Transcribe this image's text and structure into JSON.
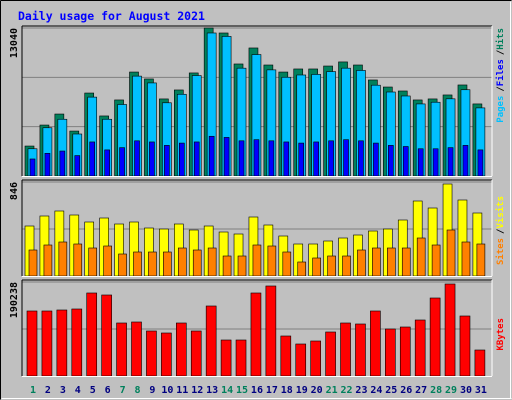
{
  "chart_data": [
    {
      "type": "bar",
      "title": "Daily usage for August 2021",
      "separator": "/",
      "ylim": [
        0,
        13040
      ],
      "yticks": [
        13040
      ],
      "series": [
        {
          "name": "Hits",
          "color": "#00805c",
          "values": [
            2640,
            4490,
            5460,
            3960,
            7310,
            5290,
            6700,
            9160,
            8550,
            6790,
            7580,
            9080,
            13040,
            12600,
            9870,
            11280,
            9780,
            9160,
            9430,
            9430,
            9690,
            10050,
            9780,
            8460,
            7840,
            7490,
            6700,
            6790,
            7140,
            8020,
            6350
          ]
        },
        {
          "name": "Files",
          "color": "#0000ff",
          "values": [
            1500,
            2000,
            2200,
            1800,
            3000,
            2300,
            2500,
            3100,
            3000,
            2700,
            2900,
            3000,
            3500,
            3400,
            3100,
            3200,
            3100,
            3000,
            2900,
            3000,
            3100,
            3200,
            3100,
            2900,
            2700,
            2600,
            2400,
            2400,
            2500,
            2700,
            2300
          ]
        },
        {
          "name": "Pages",
          "color": "#00c0ff",
          "values": [
            2400,
            4250,
            5000,
            3700,
            6950,
            5000,
            6300,
            8800,
            8200,
            6450,
            7200,
            8850,
            12600,
            12300,
            9500,
            10700,
            9350,
            8700,
            8900,
            8950,
            9200,
            9500,
            9300,
            8000,
            7400,
            7050,
            6350,
            6500,
            6800,
            7600,
            6000
          ]
        }
      ]
    },
    {
      "type": "bar",
      "separator": "/",
      "ylim": [
        0,
        846
      ],
      "yticks": [
        846
      ],
      "series": [
        {
          "name": "Visits",
          "color": "#ffff00",
          "values": [
            450,
            540,
            585,
            549,
            486,
            522,
            468,
            486,
            432,
            423,
            468,
            414,
            450,
            396,
            378,
            531,
            459,
            360,
            288,
            288,
            315,
            342,
            369,
            405,
            423,
            504,
            675,
            612,
            828,
            684,
            567
          ]
        },
        {
          "name": "Sites",
          "color": "#ff8000",
          "values": [
            234,
            279,
            306,
            288,
            252,
            270,
            198,
            216,
            216,
            216,
            252,
            234,
            252,
            180,
            180,
            279,
            270,
            216,
            126,
            162,
            180,
            180,
            234,
            252,
            252,
            252,
            342,
            279,
            414,
            306,
            288
          ]
        }
      ]
    },
    {
      "type": "bar",
      "ylim": [
        0,
        190238
      ],
      "yticks": [
        190238
      ],
      "categories": [
        "1",
        "2",
        "3",
        "4",
        "5",
        "6",
        "7",
        "8",
        "9",
        "10",
        "11",
        "12",
        "13",
        "14",
        "15",
        "16",
        "17",
        "18",
        "19",
        "20",
        "21",
        "22",
        "23",
        "24",
        "25",
        "26",
        "27",
        "28",
        "29",
        "30",
        "31"
      ],
      "category_colors": [
        "#00805c",
        "#000080",
        "#000080",
        "#000080",
        "#000080",
        "#000080",
        "#00805c",
        "#00805c",
        "#000080",
        "#000080",
        "#000080",
        "#000080",
        "#000080",
        "#00805c",
        "#00805c",
        "#000080",
        "#000080",
        "#000080",
        "#000080",
        "#000080",
        "#00805c",
        "#00805c",
        "#000080",
        "#000080",
        "#000080",
        "#000080",
        "#000080",
        "#00805c",
        "#00805c",
        "#000080",
        "#000080"
      ],
      "series": [
        {
          "name": "KBytes",
          "color": "#ff0000",
          "values": [
            131560,
            131560,
            133584,
            135608,
            167992,
            163944,
            107272,
            109296,
            91080,
            87032,
            107272,
            91080,
            141680,
            72864,
            72864,
            167992,
            182160,
            80960,
            64768,
            70840,
            89056,
            107272,
            105248,
            131560,
            95128,
            99176,
            113344,
            157872,
            186208,
            121440,
            52624
          ]
        }
      ]
    }
  ]
}
